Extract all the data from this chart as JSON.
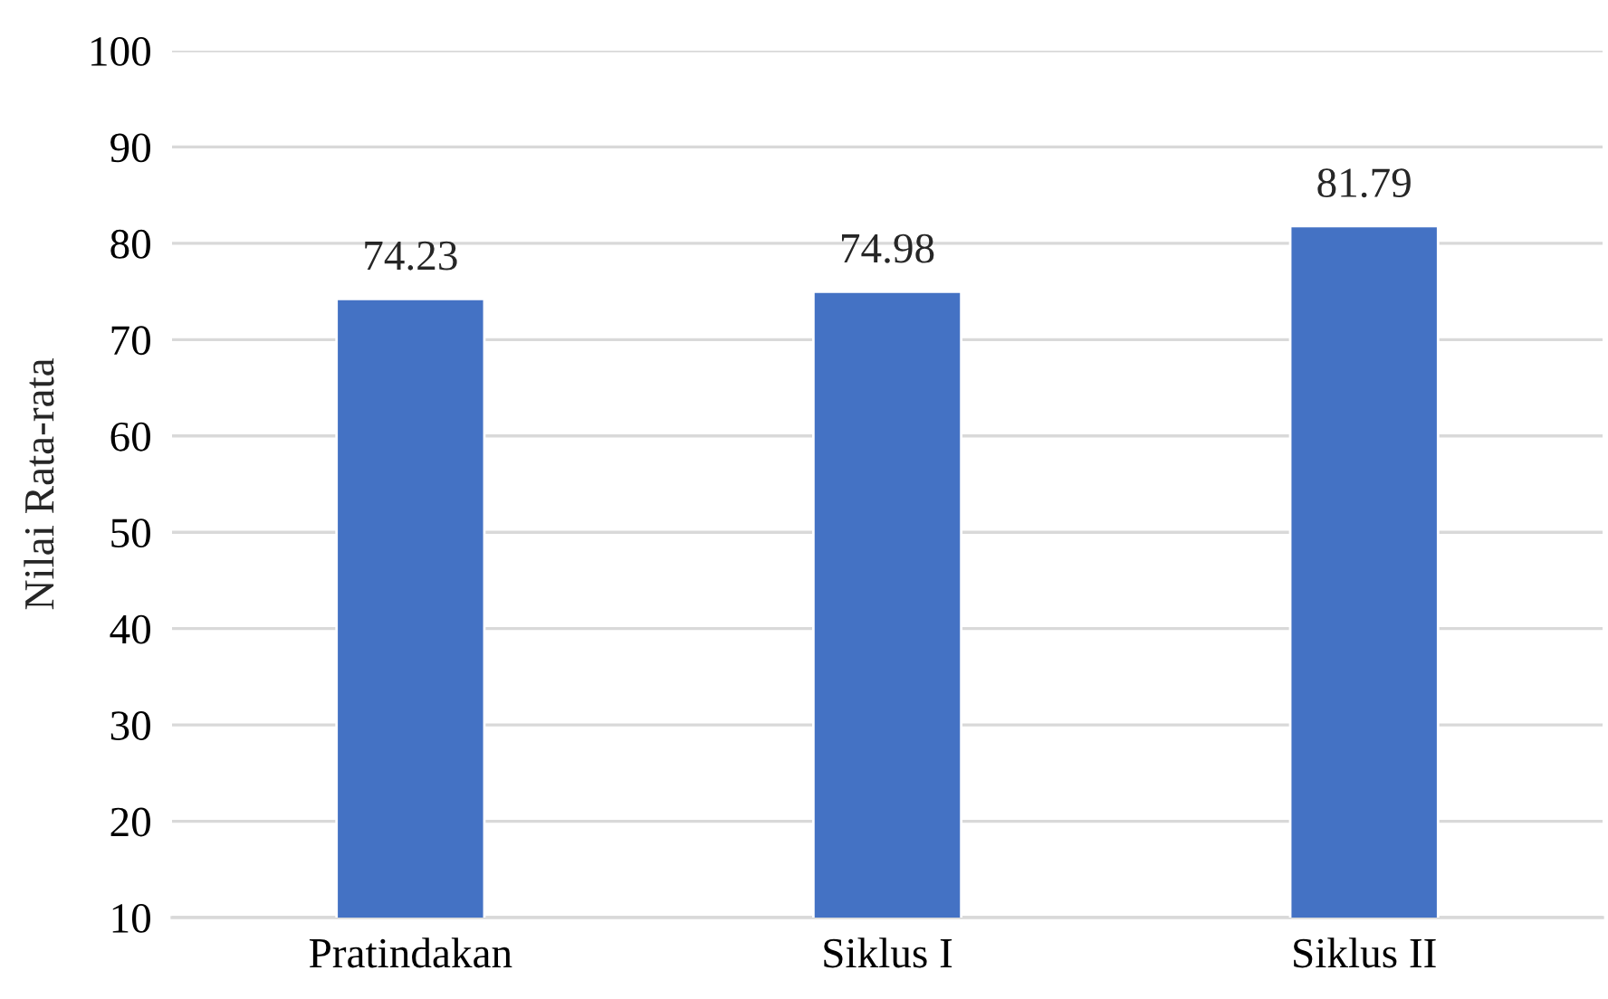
{
  "chart_data": {
    "type": "bar",
    "ylabel": "Nilai Rata-rata",
    "categories": [
      "Pratindakan",
      "Siklus I",
      "Siklus II"
    ],
    "values": [
      74.23,
      74.98,
      81.79
    ],
    "color": "#4472c4",
    "ylim": [
      10,
      100
    ],
    "yticks": [
      10,
      20,
      30,
      40,
      50,
      60,
      70,
      80,
      90,
      100
    ],
    "grid": "y",
    "data_labels": true
  }
}
